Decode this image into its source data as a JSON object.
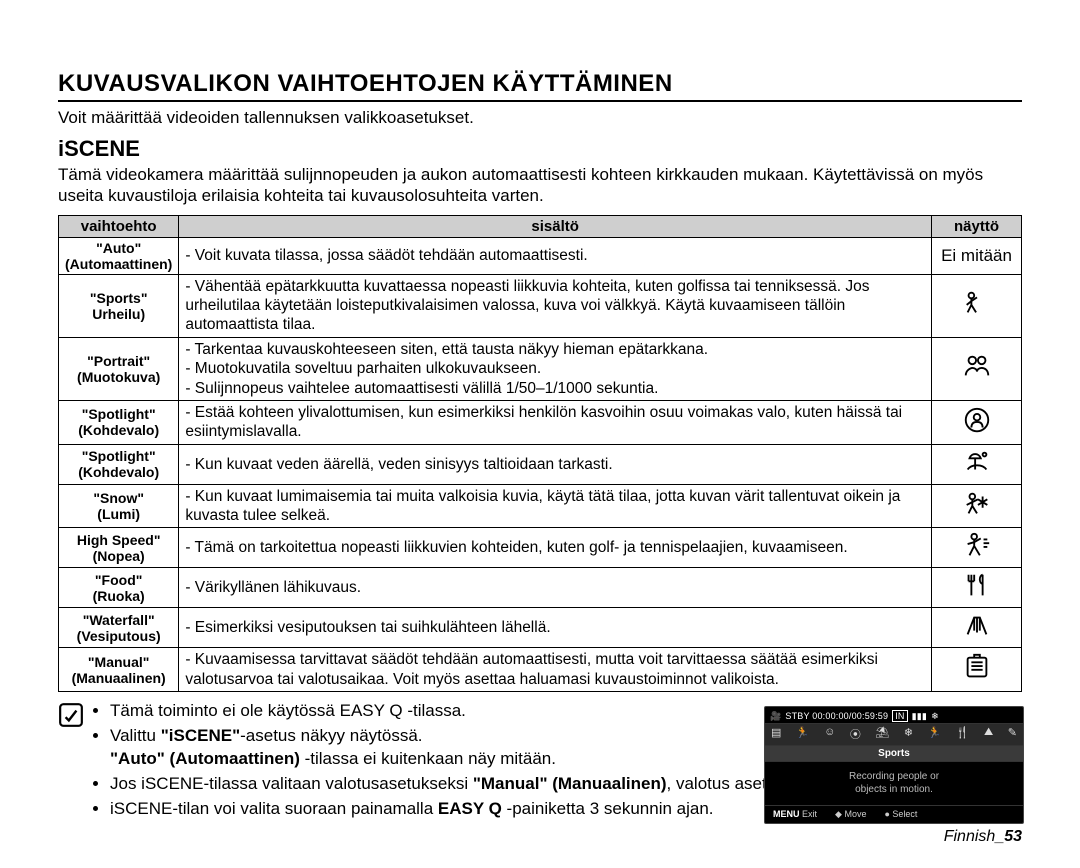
{
  "title": "KUVAUSVALIKON VAIHTOEHTOJEN KÄYTTÄMINEN",
  "intro": "Voit määrittää videoiden tallennuksen valikkoasetukset.",
  "section_title": "iSCENE",
  "section_intro": "Tämä videokamera määrittää sulijnnopeuden ja aukon automaattisesti kohteen kirkkauden mukaan. Käytettävissä on myös useita kuvaustiloja erilaisia kohteita tai kuvausolosuhteita varten.",
  "headers": {
    "option": "vaihtoehto",
    "content": "sisältö",
    "display": "näyttö"
  },
  "rows": [
    {
      "option": "\"Auto\"\n(Automaattinen)",
      "content": "- Voit kuvata tilassa, jossa säädöt tehdään automaattisesti.",
      "display_text": "Ei mitään",
      "icon": null
    },
    {
      "option": "\"Sports\"\nUrheilu)",
      "content": "- Vähentää epätarkkuutta kuvattaessa nopeasti liikkuvia kohteita, kuten golfissa tai tenniksessä. Jos urheilutilaa käytetään loisteputkivalaisimen valossa, kuva voi välkkyä. Käytä kuvaamiseen tällöin automaattista tilaa.",
      "icon": "sports"
    },
    {
      "option": "\"Portrait\"\n(Muotokuva)",
      "content": "- Tarkentaa kuvauskohteeseen siten, että tausta näkyy hieman epätarkkana.\n- Muotokuvatila soveltuu parhaiten ulkokuvaukseen.\n- Sulijnnopeus vaihtelee automaattisesti välillä 1/50–1/1000 sekuntia.",
      "icon": "portrait"
    },
    {
      "option": "\"Spotlight\"\n(Kohdevalo)",
      "content": "- Estää kohteen ylivalottumisen, kun esimerkiksi henkilön kasvoihin osuu voimakas valo, kuten häissä tai esiintymislavalla.",
      "icon": "spotlight"
    },
    {
      "option": "\"Spotlight\"\n(Kohdevalo)",
      "content": "- Kun kuvaat veden äärellä, veden sinisyys taltioidaan tarkasti.",
      "icon": "beach"
    },
    {
      "option": "\"Snow\"\n(Lumi)",
      "content": "- Kun kuvaat lumimaisemia tai muita valkoisia kuvia, käytä tätä tilaa, jotta kuvan värit tallentuvat oikein ja kuvasta tulee selkeä.",
      "icon": "snow"
    },
    {
      "option": "High Speed\"\n(Nopea)",
      "content": "- Tämä on tarkoitettua nopeasti liikkuvien kohteiden, kuten golf- ja tennispelaajien, kuvaamiseen.",
      "icon": "highspeed"
    },
    {
      "option": "\"Food\"\n(Ruoka)",
      "content": "- Värikyllänen lähikuvaus.",
      "icon": "food"
    },
    {
      "option": "\"Waterfall\"\n(Vesiputous)",
      "content": "- Esimerkiksi vesiputouksen tai suihkulähteen lähellä.",
      "icon": "waterfall"
    },
    {
      "option": "\"Manual\"\n(Manuaalinen)",
      "content": "- Kuvaamisessa tarvittavat säädöt tehdään automaattisesti, mutta voit tarvittaessa säätää esimerkiksi valotusarvoa tai valotusaikaa. Voit myös asettaa haluamasi kuvaustoiminnot valikoista.",
      "icon": "manual"
    }
  ],
  "notes": [
    "Tämä toiminto ei ole käytössä EASY Q -tilassa.",
    "Valittu <b>\"iSCENE\"</b>-asetus näkyy näytössä.<br><b>\"Auto\" (Automaattinen)</b> -tilassa ei kuitenkaan näy mitään.",
    "Jos iSCENE-tilassa valitaan valotusasetukseksi <b>\"Manual\" (Manuaalinen)</b>, valotus asetetaan ensin (aukon esivalinta).",
    "iSCENE-tilan voi valita suoraan painamalla <b>EASY Q</b> -painiketta 3 sekunnin ajan."
  ],
  "preview": {
    "status": "STBY 00:00:00/00:59:59",
    "in_label": "IN",
    "mode": "Sports",
    "desc": "Recording people or\nobjects in motion.",
    "menu": "MENU",
    "exit": "Exit",
    "move": "Move",
    "select": "Select"
  },
  "footer": {
    "text": "Finnish",
    "page": "_53"
  }
}
